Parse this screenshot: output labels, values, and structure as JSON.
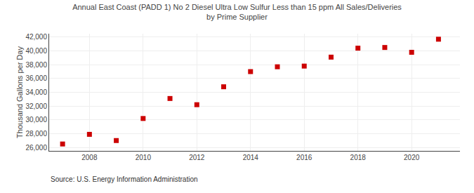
{
  "chart_data": {
    "type": "scatter",
    "title": "Annual East Coast (PADD 1) No 2 Diesel Ultra Low Sulfur Less than 15 ppm All Sales/Deliveries\nby Prime Supplier",
    "ylabel": "Thousand Gallons per Day",
    "annotations": [
      "Source: U.S. Energy Information Administration"
    ],
    "x": [
      2007,
      2008,
      2009,
      2010,
      2011,
      2012,
      2013,
      2014,
      2015,
      2016,
      2017,
      2018,
      2019,
      2020,
      2021
    ],
    "values": [
      26500,
      27900,
      27000,
      30200,
      33100,
      32200,
      34800,
      37000,
      37700,
      37800,
      39100,
      40400,
      40500,
      39800,
      41700
    ],
    "color": "#cc0000",
    "marker": "square",
    "xlim": [
      2006.5,
      2021.8
    ],
    "xticks": [
      2008,
      2010,
      2012,
      2014,
      2016,
      2018,
      2020
    ],
    "ylim": [
      25500,
      42500
    ],
    "yticks": [
      {
        "value": 26000,
        "label": "26,000"
      },
      {
        "value": 28000,
        "label": "28,000"
      },
      {
        "value": 30000,
        "label": "30,000"
      },
      {
        "value": 32000,
        "label": "32,000"
      },
      {
        "value": 34000,
        "label": "34,000"
      },
      {
        "value": 36000,
        "label": "36,000"
      },
      {
        "value": 38000,
        "label": "38,000"
      },
      {
        "value": 40000,
        "label": "40,000"
      },
      {
        "value": 42000,
        "label": "42,000"
      }
    ],
    "grid": true
  }
}
